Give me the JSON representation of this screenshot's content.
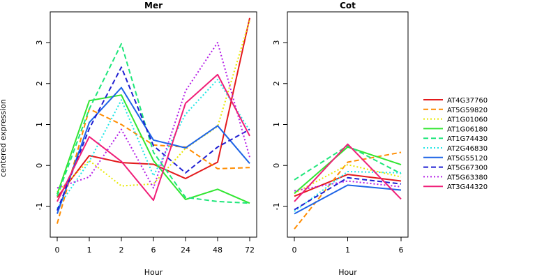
{
  "chart_data": {
    "type": "line",
    "ylabel": "centered expression",
    "y_ticks": [
      "-1",
      "0",
      "1",
      "2",
      "3"
    ],
    "ylim": [
      -1.75,
      3.75
    ],
    "legend_position": "right",
    "panels": [
      {
        "title": "Mer",
        "xlabel": "Hour",
        "categories": [
          "0",
          "1",
          "2",
          "6",
          "24",
          "48",
          "72"
        ],
        "series": [
          {
            "name": "AT4G37760",
            "color": "#e31a1c",
            "dash": "solid",
            "values": [
              -0.78,
              0.24,
              0.07,
              0.03,
              -0.32,
              0.08,
              3.6
            ]
          },
          {
            "name": "AT5G59820",
            "color": "#ff8c00",
            "dash": "dashed",
            "values": [
              -1.42,
              1.38,
              1.0,
              0.5,
              0.45,
              -0.08,
              -0.05
            ]
          },
          {
            "name": "AT1G01060",
            "color": "#e8e800",
            "dash": "dotted",
            "values": [
              -0.65,
              0.12,
              -0.5,
              -0.45,
              0.42,
              0.95,
              3.55
            ]
          },
          {
            "name": "AT1G06180",
            "color": "#32e632",
            "dash": "solid",
            "values": [
              -0.7,
              1.58,
              1.72,
              0.12,
              -0.83,
              -0.58,
              -0.92
            ]
          },
          {
            "name": "AT1G74430",
            "color": "#1ee67a",
            "dash": "dashed",
            "values": [
              -0.75,
              1.38,
              2.97,
              0.32,
              -0.78,
              -0.88,
              -0.92
            ]
          },
          {
            "name": "AT2G46830",
            "color": "#1ee6e6",
            "dash": "dotted",
            "values": [
              -1.05,
              0.1,
              1.6,
              -0.25,
              1.25,
              2.1,
              0.85
            ]
          },
          {
            "name": "AT5G55120",
            "color": "#1e64e6",
            "dash": "solid",
            "values": [
              -1.18,
              1.05,
              1.9,
              0.62,
              0.43,
              0.97,
              0.05
            ]
          },
          {
            "name": "AT5G67300",
            "color": "#1e1ed2",
            "dash": "dashed",
            "values": [
              -1.1,
              0.9,
              2.4,
              0.48,
              -0.18,
              0.45,
              0.88
            ]
          },
          {
            "name": "AT5G63380",
            "color": "#b41ee6",
            "dash": "dotted",
            "values": [
              -0.55,
              -0.28,
              0.88,
              -0.55,
              1.82,
              3.0,
              0.2
            ]
          },
          {
            "name": "AT3G44320",
            "color": "#f01e78",
            "dash": "solid",
            "values": [
              -0.88,
              0.7,
              0.1,
              -0.85,
              1.52,
              2.22,
              0.72
            ]
          }
        ]
      },
      {
        "title": "Cot",
        "xlabel": "Hour",
        "categories": [
          "0",
          "1",
          "6"
        ],
        "series": [
          {
            "name": "AT4G37760",
            "color": "#e31a1c",
            "dash": "solid",
            "values": [
              -0.75,
              -0.22,
              -0.38
            ]
          },
          {
            "name": "AT5G59820",
            "color": "#ff8c00",
            "dash": "dashed",
            "values": [
              -1.55,
              0.08,
              0.32
            ]
          },
          {
            "name": "AT1G01060",
            "color": "#e8e800",
            "dash": "dotted",
            "values": [
              -0.68,
              0.02,
              -0.28
            ]
          },
          {
            "name": "AT1G06180",
            "color": "#32e632",
            "dash": "solid",
            "values": [
              -0.68,
              0.45,
              0.02
            ]
          },
          {
            "name": "AT1G74430",
            "color": "#1ee67a",
            "dash": "dashed",
            "values": [
              -0.35,
              0.48,
              -0.2
            ]
          },
          {
            "name": "AT2G46830",
            "color": "#1ee6e6",
            "dash": "dotted",
            "values": [
              -1.12,
              -0.15,
              -0.18
            ]
          },
          {
            "name": "AT5G55120",
            "color": "#1e64e6",
            "dash": "solid",
            "values": [
              -1.18,
              -0.48,
              -0.6
            ]
          },
          {
            "name": "AT5G67300",
            "color": "#1e1ed2",
            "dash": "dashed",
            "values": [
              -1.08,
              -0.3,
              -0.45
            ]
          },
          {
            "name": "AT5G63380",
            "color": "#b41ee6",
            "dash": "dotted",
            "values": [
              -0.62,
              -0.38,
              -0.52
            ]
          },
          {
            "name": "AT3G44320",
            "color": "#f01e78",
            "dash": "solid",
            "values": [
              -0.88,
              0.52,
              -0.82
            ]
          }
        ]
      }
    ]
  }
}
